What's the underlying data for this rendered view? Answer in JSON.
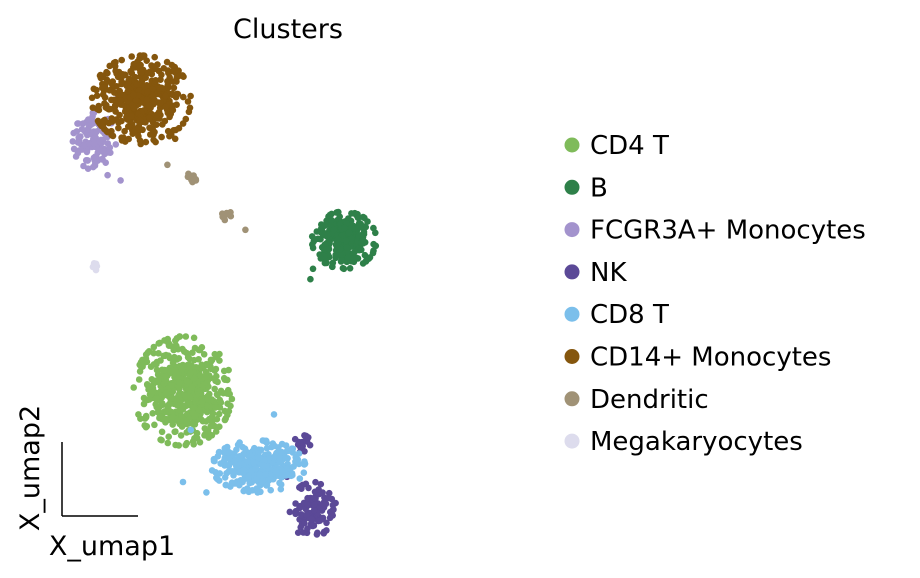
{
  "chart_data": {
    "type": "scatter",
    "title": "Clusters",
    "xlabel": "X_umap1",
    "ylabel": "X_umap2",
    "xlim": [
      0,
      10
    ],
    "ylim": [
      0,
      10
    ],
    "grid": false,
    "legend_position": "right",
    "series": [
      {
        "name": "CD4 T",
        "color": "#7fbb5a",
        "clusters": [
          {
            "cx": 2.75,
            "cy": 3.25,
            "rx": 0.95,
            "ry": 1.05,
            "n": 520,
            "points": [
              [
                2.2,
                2.6
              ],
              [
                3.4,
                3.9
              ],
              [
                2.0,
                3.0
              ],
              [
                3.6,
                3.2
              ]
            ]
          }
        ]
      },
      {
        "name": "B",
        "color": "#2e8049",
        "clusters": [
          {
            "cx": 5.85,
            "cy": 6.15,
            "rx": 0.62,
            "ry": 0.55,
            "n": 300,
            "points": [
              [
                5.2,
                5.4
              ],
              [
                5.25,
                5.6
              ],
              [
                5.4,
                5.8
              ]
            ]
          }
        ]
      },
      {
        "name": "FCGR3A+ Monocytes",
        "color": "#a393cd",
        "clusters": [
          {
            "cx": 1.05,
            "cy": 8.05,
            "rx": 0.42,
            "ry": 0.55,
            "n": 110,
            "points": [
              [
                1.5,
                8.9
              ],
              [
                1.3,
                7.4
              ],
              [
                1.55,
                7.3
              ],
              [
                1.2,
                8.4
              ]
            ]
          }
        ]
      },
      {
        "name": "NK",
        "color": "#5b4997",
        "clusters": [
          {
            "cx": 5.25,
            "cy": 0.95,
            "rx": 0.45,
            "ry": 0.55,
            "n": 110,
            "points": []
          },
          {
            "cx": 5.05,
            "cy": 2.2,
            "rx": 0.18,
            "ry": 0.2,
            "n": 18,
            "points": [
              [
                4.65,
                2.0
              ],
              [
                4.75,
                1.6
              ]
            ]
          }
        ]
      },
      {
        "name": "CD8 T",
        "color": "#7bbfeb",
        "clusters": [
          {
            "cx": 4.2,
            "cy": 1.8,
            "rx": 0.9,
            "ry": 0.5,
            "n": 300,
            "points": [
              [
                2.75,
                1.5
              ],
              [
                3.2,
                1.3
              ],
              [
                2.9,
                2.5
              ],
              [
                4.5,
                2.8
              ]
            ]
          }
        ]
      },
      {
        "name": "CD14+ Monocytes",
        "color": "#85560d",
        "clusters": [
          {
            "cx": 1.95,
            "cy": 8.85,
            "rx": 0.95,
            "ry": 0.85,
            "n": 430,
            "points": [
              [
                1.3,
                9.2
              ],
              [
                2.6,
                8.1
              ]
            ]
          }
        ]
      },
      {
        "name": "Dendritic",
        "color": "#a09276",
        "clusters": [
          {
            "cx": 2.9,
            "cy": 7.35,
            "rx": 0.15,
            "ry": 0.12,
            "n": 10,
            "points": []
          },
          {
            "cx": 3.6,
            "cy": 6.6,
            "rx": 0.15,
            "ry": 0.1,
            "n": 10,
            "points": [
              [
                3.95,
                6.35
              ],
              [
                2.45,
                7.6
              ]
            ]
          }
        ]
      },
      {
        "name": "Megakaryocytes",
        "color": "#dddced",
        "clusters": [
          {
            "cx": 1.05,
            "cy": 5.65,
            "rx": 0.08,
            "ry": 0.15,
            "n": 8,
            "points": []
          }
        ]
      }
    ]
  }
}
